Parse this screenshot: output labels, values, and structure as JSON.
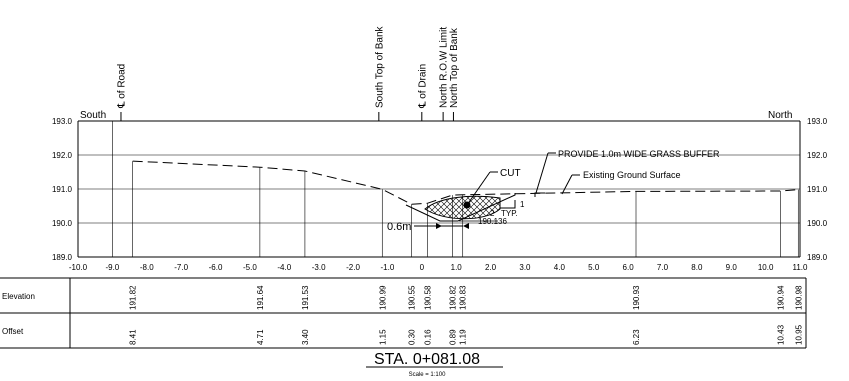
{
  "labels": {
    "south": "South",
    "north": "North",
    "station": "STA. 0+081.08",
    "scale": "Scale = 1:100",
    "elevation_row": "Elevation",
    "offset_row": "Offset"
  },
  "features": [
    {
      "x": -8.75,
      "label": "℄ of Road"
    },
    {
      "x": -1.25,
      "label": "South Top of Bank"
    },
    {
      "x": -0.0,
      "label": "℄ of Drain"
    },
    {
      "x": 0.62,
      "label": "North R.O.W Limit"
    },
    {
      "x": 0.92,
      "label": "North Top of Bank"
    }
  ],
  "annotations": {
    "cut": "CUT",
    "grass_buffer": "PROVIDE 1.0m WIDE GRASS BUFFER",
    "existing_ground": "Existing Ground Surface",
    "dim_06": "0.6m",
    "slope_run": "2",
    "slope_typ": "TYP.",
    "slope_rise": "1",
    "invert": "190.136"
  },
  "chart_data": {
    "type": "line",
    "x_label": "",
    "y_label": "",
    "xlim": [
      -10.0,
      11.0
    ],
    "ylim": [
      189.0,
      193.0
    ],
    "x_ticks": [
      "-10.0",
      "-9.0",
      "-8.0",
      "-7.0",
      "-6.0",
      "-5.0",
      "-4.0",
      "-3.0",
      "-2.0",
      "-1.0",
      "0",
      "1.0",
      "2.0",
      "3.0",
      "4.0",
      "5.0",
      "6.0",
      "7.0",
      "8.0",
      "9.0",
      "10.0",
      "11.0"
    ],
    "y_ticks": [
      "189.0",
      "190.0",
      "191.0",
      "192.0",
      "193.0"
    ],
    "series": [
      {
        "points": [
          [
            -8.41,
            191.82
          ],
          [
            -4.71,
            191.64
          ],
          [
            -3.4,
            191.53
          ],
          [
            -1.15,
            190.99
          ],
          [
            -0.3,
            190.55
          ],
          [
            0.16,
            190.58
          ],
          [
            0.89,
            190.82
          ],
          [
            1.19,
            190.83
          ],
          [
            6.23,
            190.93
          ],
          [
            10.43,
            190.94
          ],
          [
            10.95,
            190.98
          ]
        ]
      }
    ],
    "table": {
      "columns": [
        {
          "x": -8.41,
          "elevation": "191.82",
          "offset": "8.41"
        },
        {
          "x": -4.71,
          "elevation": "191.64",
          "offset": "4.71"
        },
        {
          "x": -3.4,
          "elevation": "191.53",
          "offset": "3.40"
        },
        {
          "x": -1.15,
          "elevation": "190.99",
          "offset": "1.15"
        },
        {
          "x": -0.3,
          "elevation": "190.55",
          "offset": "0.30"
        },
        {
          "x": 0.16,
          "elevation": "190.58",
          "offset": "0.16"
        },
        {
          "x": 0.89,
          "elevation": "190.82",
          "offset": "0.89"
        },
        {
          "x": 1.19,
          "elevation": "190.83",
          "offset": "1.19"
        },
        {
          "x": 6.23,
          "elevation": "190.93",
          "offset": "6.23"
        },
        {
          "x": 10.43,
          "elevation": "190.94",
          "offset": "10.43"
        },
        {
          "x": 10.95,
          "elevation": "190.98",
          "offset": "10.95"
        }
      ]
    }
  }
}
